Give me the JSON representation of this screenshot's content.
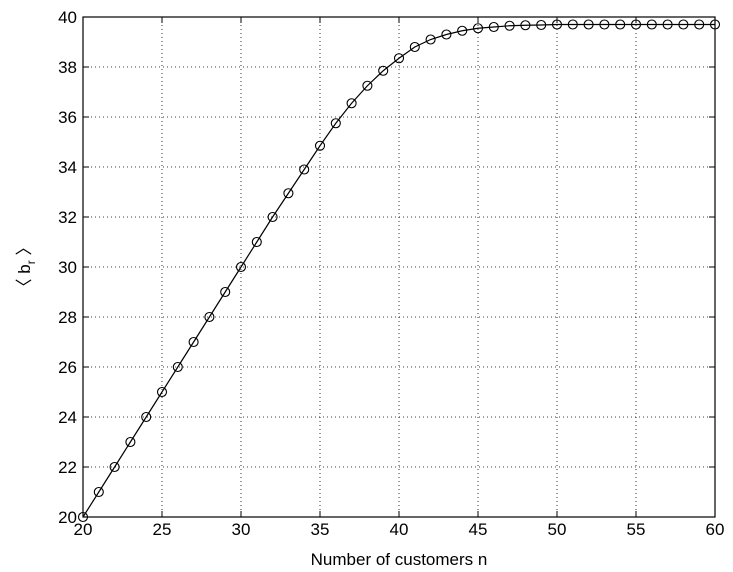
{
  "chart_data": {
    "type": "line",
    "title": "",
    "xlabel": "Number of customers n",
    "ylabel_main": "〈 b",
    "ylabel_sub": "r",
    "ylabel_close": " 〉",
    "xlim": [
      20,
      60
    ],
    "ylim": [
      20,
      40
    ],
    "xticks": [
      20,
      25,
      30,
      35,
      40,
      45,
      50,
      55,
      60
    ],
    "yticks": [
      20,
      22,
      24,
      26,
      28,
      30,
      32,
      34,
      36,
      38,
      40
    ],
    "grid": true,
    "marker": "circle",
    "line_color": "#000000",
    "x": [
      20,
      21,
      22,
      23,
      24,
      25,
      26,
      27,
      28,
      29,
      30,
      31,
      32,
      33,
      34,
      35,
      36,
      37,
      38,
      39,
      40,
      41,
      42,
      43,
      44,
      45,
      46,
      47,
      48,
      49,
      50,
      51,
      52,
      53,
      54,
      55,
      56,
      57,
      58,
      59,
      60
    ],
    "y": [
      20,
      21,
      22,
      23,
      24,
      25,
      26,
      27,
      28,
      29,
      30,
      31,
      32,
      32.95,
      33.9,
      34.85,
      35.75,
      36.55,
      37.25,
      37.85,
      38.35,
      38.8,
      39.1,
      39.3,
      39.45,
      39.55,
      39.6,
      39.65,
      39.67,
      39.68,
      39.7,
      39.7,
      39.7,
      39.7,
      39.7,
      39.7,
      39.7,
      39.7,
      39.7,
      39.7,
      39.7
    ]
  }
}
